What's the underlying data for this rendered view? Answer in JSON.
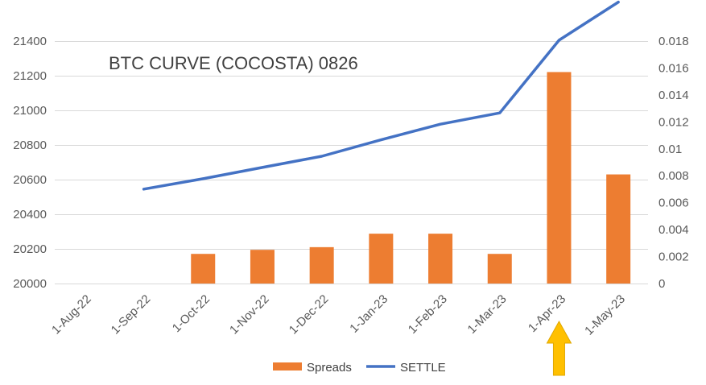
{
  "chart_data": {
    "type": "bar+line",
    "title": "BTC CURVE (COCOSTA) 0826",
    "categories": [
      "1-Aug-22",
      "1-Sep-22",
      "1-Oct-22",
      "1-Nov-22",
      "1-Dec-22",
      "1-Jan-23",
      "1-Feb-23",
      "1-Mar-23",
      "1-Apr-23",
      "1-May-23"
    ],
    "series": [
      {
        "name": "Spreads",
        "type": "bar",
        "axis": "secondary",
        "color": "#ED7D31",
        "values": [
          null,
          null,
          0.0022,
          0.0025,
          0.0027,
          0.0037,
          0.0037,
          0.0022,
          0.0157,
          0.0081
        ]
      },
      {
        "name": "SETTLE",
        "type": "line",
        "axis": "primary",
        "color": "#4472C4",
        "values": [
          null,
          20545,
          20605,
          20670,
          20735,
          20830,
          20920,
          20985,
          21405,
          21625
        ]
      }
    ],
    "y_left": {
      "min": 20000,
      "max": 21400,
      "ticks": [
        "20000",
        "20200",
        "20400",
        "20600",
        "20800",
        "21000",
        "21200",
        "21400"
      ]
    },
    "y_right": {
      "min": 0,
      "max": 0.018,
      "ticks": [
        "0",
        "0.002",
        "0.004",
        "0.006",
        "0.008",
        "0.01",
        "0.012",
        "0.014",
        "0.016",
        "0.018"
      ]
    },
    "grid": true,
    "legend": "bottom",
    "annotation": {
      "type": "arrow",
      "target": "1-Apr-23",
      "color": "#FFC000"
    }
  }
}
